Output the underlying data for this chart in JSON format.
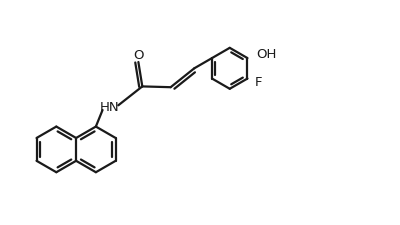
{
  "bg_color": "#ffffff",
  "line_color": "#1a1a1a",
  "line_width": 1.6,
  "font_size": 9.5,
  "fig_width": 4.0,
  "fig_height": 2.26,
  "dpi": 100,
  "xlim": [
    0.0,
    10.0
  ],
  "ylim": [
    0.0,
    5.6
  ]
}
